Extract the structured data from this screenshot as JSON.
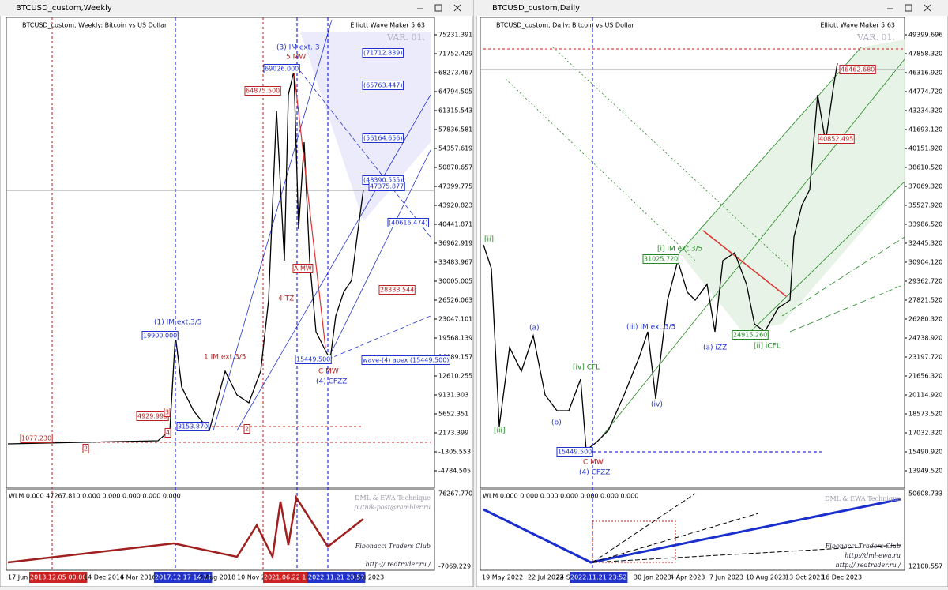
{
  "windows": [
    {
      "title": "BTCUSD_custom,Weekly",
      "header": "BTCUSD_custom, Weekly:  Bitcoin vs US Dollar",
      "ea_label": "Elliott Wave Maker 5.63",
      "variant": "VAR. 01.",
      "price_axis": [
        "75231.391",
        "71752.429",
        "68273.467",
        "64794.505",
        "61315.543",
        "57836.581",
        "54357.619",
        "50878.657",
        "47399.775",
        "43920.823",
        "40441.871",
        "36962.919",
        "33483.967",
        "30005.005",
        "26526.063",
        "23047.101",
        "19568.139",
        "16089.157",
        "12610.255",
        "9131.303",
        "5652.351",
        "2173.399",
        "-1305.553",
        "-4784.505"
      ],
      "time_axis": [
        "17 Jun 2012",
        "2013.12.05 00:00",
        "14 Dec 2014",
        "6 Mar 2016",
        "2017.12.17 14:14",
        "9 Aug 2018",
        "10 Nov 20",
        "2021.06.22 16:55",
        "2022.11.21 23:52",
        "3 Jul 2023"
      ],
      "indicator": {
        "label": "WLM 0.000 47267.810 0.000 0.000 0.000 0.000 0.000",
        "axis": [
          "76267.770",
          "-7069.229"
        ],
        "notes": [
          "DML & EWA Technique",
          "putnik-post@rambler.ru",
          "Fibonacci   Traders   Club",
          "http:// redtrader.ru /"
        ]
      },
      "annotations": [
        "(1) IM ext.3/5",
        "19900.000",
        "(3) IM ext. 3",
        "5 MW",
        "69026.000",
        "64875.500",
        "1 IM ext.3/5",
        "4929.999",
        "1077.230",
        "3153.870",
        "C MW",
        "(4) CFZZ",
        "15449.500",
        "wave-(4) apex (15449.500)",
        "4 TZ",
        "28333.544",
        "(71712.839)",
        "(65763.447)",
        "(56164.656)",
        "(48390.555)",
        "47375.877",
        "(40616.474)",
        "2",
        "3",
        "4",
        "2",
        "A MW"
      ]
    },
    {
      "title": "BTCUSD_custom,Daily",
      "header": "BTCUSD_custom, Daily:  Bitcoin vs US Dollar",
      "ea_label": "Elliott Wave Maker 5.63",
      "variant": "VAR. 01.",
      "price_axis": [
        "49399.696",
        "47858.320",
        "46316.920",
        "44774.720",
        "43234.320",
        "41693.120",
        "40151.920",
        "38610.520",
        "37069.320",
        "35527.920",
        "33986.520",
        "32445.320",
        "30904.120",
        "29362.720",
        "27821.520",
        "26280.320",
        "24738.920",
        "23197.720",
        "21656.320",
        "20114.920",
        "18573.520",
        "17032.320",
        "15490.920",
        "13949.520"
      ],
      "time_axis": [
        "19 May 2022",
        "22 Jul 2022",
        "24 S",
        "2022.11.21 23:52",
        "30 Jan 2023",
        "4 Apr 2023",
        "7 Jun 2023",
        "10 Aug 2023",
        "13 Oct 2023",
        "16 Dec 2023"
      ],
      "indicator": {
        "label": "WLM 0.000 0.000 0.000 0.000 0.000 0.000 0.000",
        "axis": [
          "50608.733",
          "12108.557"
        ],
        "notes": [
          "DML & EWA Technique",
          "Fibonacci   Traders   Club",
          "http://dml-ewa.ru",
          "http:// redtrader.ru /"
        ]
      },
      "annotations": [
        "31025.720",
        "[i] IM ext.3/5",
        "24915.260",
        "[ii] iCFL",
        "(a) iZZ",
        "15449.500",
        "C MW",
        "(4) CFZZ",
        "46462.680",
        "40852.495",
        "(iii) IM ext.3/5",
        "[iv] CFL",
        "[iii]",
        "[ii]",
        "(iv)",
        "(b)",
        "(a)"
      ]
    }
  ]
}
